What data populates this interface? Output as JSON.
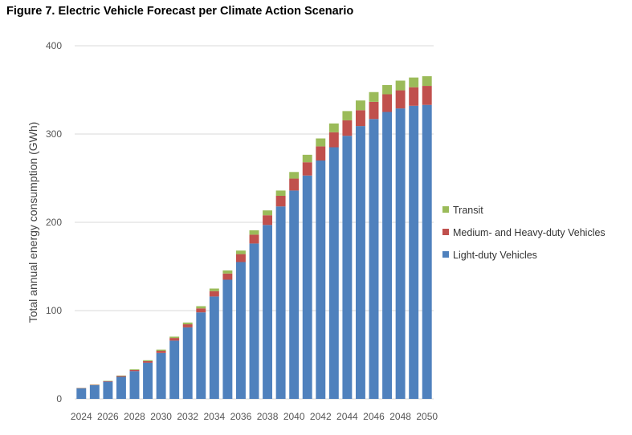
{
  "chart_data": {
    "type": "bar",
    "stacked": true,
    "title": "Figure 7. Electric Vehicle Forecast per Climate Action Scenario",
    "xlabel": "",
    "ylabel": "Total annual energy consumption (GWh)",
    "ylim": [
      0,
      400
    ],
    "yticks": [
      0,
      100,
      200,
      300,
      400
    ],
    "grid": true,
    "legend_position": "right",
    "categories": [
      "2024",
      "2025",
      "2026",
      "2027",
      "2028",
      "2029",
      "2030",
      "2031",
      "2032",
      "2033",
      "2034",
      "2035",
      "2036",
      "2037",
      "2038",
      "2039",
      "2040",
      "2041",
      "2042",
      "2043",
      "2044",
      "2045",
      "2046",
      "2047",
      "2048",
      "2049",
      "2050"
    ],
    "x_tick_labels": [
      "2024",
      "2026",
      "2028",
      "2030",
      "2032",
      "2034",
      "2036",
      "2038",
      "2040",
      "2042",
      "2044",
      "2046",
      "2048",
      "2050"
    ],
    "series": [
      {
        "name": "Light-duty Vehicles",
        "color": "#4F81BD",
        "values": [
          12,
          15.5,
          19.5,
          25,
          31.5,
          41,
          52,
          66,
          81,
          98,
          116,
          135,
          155,
          176,
          197,
          218,
          236,
          253,
          270,
          285,
          298,
          309,
          317,
          325,
          329,
          332,
          333
        ]
      },
      {
        "name": "Medium- and Heavy-duty Vehicles",
        "color": "#C0504D",
        "values": [
          0.3,
          0.4,
          0.6,
          0.9,
          1.3,
          1.8,
          2.5,
          3,
          3.5,
          4.5,
          6,
          7,
          9,
          10,
          11,
          12,
          13.5,
          15,
          16,
          17,
          17.5,
          18,
          19.5,
          20,
          20.5,
          21,
          21.5
        ]
      },
      {
        "name": "Transit",
        "color": "#9BBB59",
        "values": [
          0.2,
          0.3,
          0.4,
          0.5,
          0.7,
          1,
          1.3,
          1.5,
          2,
          2.5,
          3,
          3.5,
          4,
          5,
          5.5,
          6,
          7.5,
          8.5,
          9,
          10,
          10.5,
          11,
          11,
          10.5,
          11,
          11,
          11
        ]
      }
    ],
    "legend_order": [
      "Transit",
      "Medium- and Heavy-duty Vehicles",
      "Light-duty Vehicles"
    ]
  }
}
